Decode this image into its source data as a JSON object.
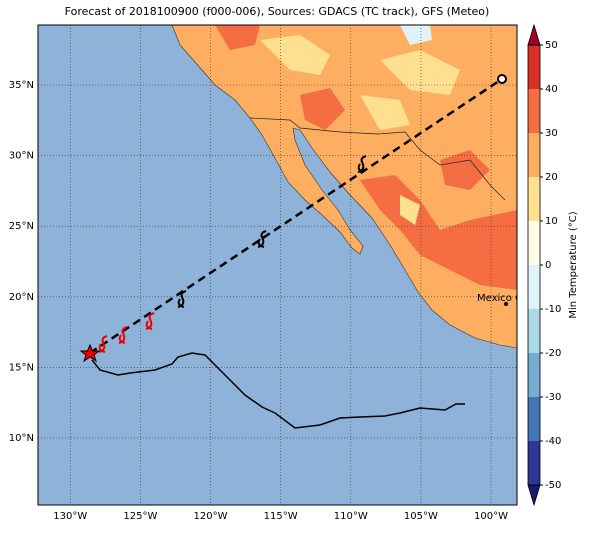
{
  "map": {
    "title": "Forecast of 2018100900 (f000-006), Sources: GDACS (TC track), GFS (Meteo)",
    "lon_ticks": [
      {
        "value": -130,
        "label": "130°W"
      },
      {
        "value": -125,
        "label": "125°W"
      },
      {
        "value": -120,
        "label": "120°W"
      },
      {
        "value": -115,
        "label": "115°W"
      },
      {
        "value": -110,
        "label": "110°W"
      },
      {
        "value": -105,
        "label": "105°W"
      },
      {
        "value": -100,
        "label": "100°W"
      }
    ],
    "lat_ticks": [
      {
        "value": 10,
        "label": "10°N"
      },
      {
        "value": 15,
        "label": "15°N"
      },
      {
        "value": 20,
        "label": "20°N"
      },
      {
        "value": 25,
        "label": "25°N"
      },
      {
        "value": 30,
        "label": "30°N"
      },
      {
        "value": 35,
        "label": "35°N"
      }
    ],
    "lonlim": [
      -132.3,
      -98.15
    ],
    "latlim": [
      5.25,
      39.25
    ],
    "grid": true,
    "colorbar": {
      "label": "Min Temperature (°C)",
      "lim": [
        -50,
        50
      ],
      "ticks": [
        -50,
        -40,
        -30,
        -20,
        -10,
        0,
        10,
        20,
        30,
        40,
        50
      ],
      "colors": [
        "#313695",
        "#4575b4",
        "#74add1",
        "#abd9e9",
        "#e0f3f8",
        "#fefee8",
        "#fee090",
        "#fdae61",
        "#f46d43",
        "#d73027"
      ],
      "extend_colors": [
        "#1a1a6e",
        "#a50026"
      ]
    },
    "place_label": "Mexico Cit"
  }
}
